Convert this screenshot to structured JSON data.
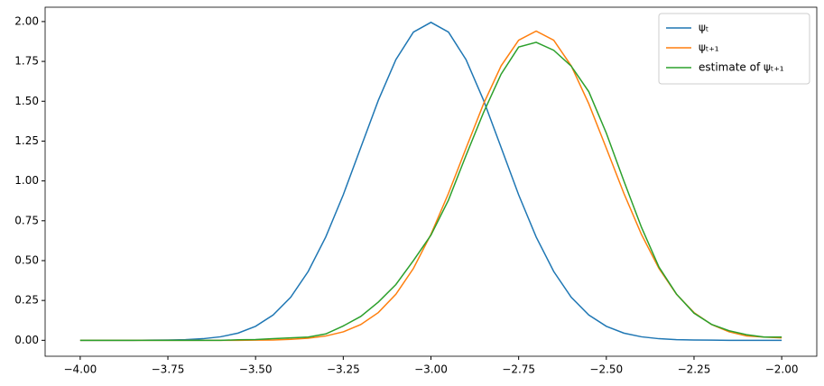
{
  "chart_data": {
    "type": "line",
    "x": [
      -4,
      -3.95,
      -3.9,
      -3.85,
      -3.8,
      -3.75,
      -3.7,
      -3.65,
      -3.6,
      -3.55,
      -3.5,
      -3.45,
      -3.4,
      -3.35,
      -3.3,
      -3.25,
      -3.2,
      -3.15,
      -3.1,
      -3.05,
      -3,
      -2.95,
      -2.9,
      -2.85,
      -2.8,
      -2.75,
      -2.7,
      -2.65,
      -2.6,
      -2.55,
      -2.5,
      -2.45,
      -2.4,
      -2.35,
      -2.3,
      -2.25,
      -2.2,
      -2.15,
      -2.1,
      -2.05,
      -2
    ],
    "series": [
      {
        "name": "ψₜ",
        "color": "#1f77b4",
        "values": [
          0,
          0,
          0,
          0,
          0.001,
          0.002,
          0.004,
          0.01,
          0.022,
          0.045,
          0.088,
          0.159,
          0.27,
          0.432,
          0.648,
          0.913,
          1.21,
          1.506,
          1.761,
          1.934,
          1.995,
          1.934,
          1.761,
          1.506,
          1.21,
          0.913,
          0.648,
          0.432,
          0.27,
          0.159,
          0.088,
          0.045,
          0.022,
          0.01,
          0.004,
          0.002,
          0.001,
          0,
          0,
          0,
          0
        ]
      },
      {
        "name": "ψₜ₊₁",
        "color": "#ff7f0e",
        "values": [
          0,
          0,
          0,
          0,
          0,
          0,
          0,
          0,
          0,
          0,
          0.001,
          0.002,
          0.006,
          0.013,
          0.027,
          0.053,
          0.099,
          0.174,
          0.289,
          0.451,
          0.665,
          0.922,
          1.205,
          1.484,
          1.722,
          1.883,
          1.94,
          1.883,
          1.722,
          1.484,
          1.205,
          0.922,
          0.665,
          0.451,
          0.289,
          0.174,
          0.099,
          0.053,
          0.027,
          0.02,
          0.015
        ]
      },
      {
        "name": "estimate of ψₜ₊₁",
        "color": "#2ca02c",
        "values": [
          0,
          0,
          0,
          0,
          0,
          0,
          0,
          0,
          0,
          0.003,
          0.005,
          0.01,
          0.015,
          0.02,
          0.04,
          0.09,
          0.15,
          0.24,
          0.35,
          0.5,
          0.66,
          0.88,
          1.16,
          1.43,
          1.67,
          1.84,
          1.87,
          1.82,
          1.72,
          1.56,
          1.3,
          1.0,
          0.71,
          0.46,
          0.29,
          0.17,
          0.1,
          0.06,
          0.035,
          0.02,
          0.02
        ]
      }
    ],
    "xlim": [
      -4.1,
      -1.9
    ],
    "ylim": [
      -0.1,
      2.09
    ],
    "xticks": [
      {
        "value": -4,
        "label": "−4.00"
      },
      {
        "value": -3.75,
        "label": "−3.75"
      },
      {
        "value": -3.5,
        "label": "−3.50"
      },
      {
        "value": -3.25,
        "label": "−3.25"
      },
      {
        "value": -3,
        "label": "−3.00"
      },
      {
        "value": -2.75,
        "label": "−2.75"
      },
      {
        "value": -2.5,
        "label": "−2.50"
      },
      {
        "value": -2.25,
        "label": "−2.25"
      },
      {
        "value": -2,
        "label": "−2.00"
      }
    ],
    "yticks": [
      {
        "value": 0,
        "label": "0.00"
      },
      {
        "value": 0.25,
        "label": "0.25"
      },
      {
        "value": 0.5,
        "label": "0.50"
      },
      {
        "value": 0.75,
        "label": "0.75"
      },
      {
        "value": 1,
        "label": "1.00"
      },
      {
        "value": 1.25,
        "label": "1.25"
      },
      {
        "value": 1.5,
        "label": "1.50"
      },
      {
        "value": 1.75,
        "label": "1.75"
      },
      {
        "value": 2,
        "label": "2.00"
      }
    ],
    "legend": "upper right"
  }
}
